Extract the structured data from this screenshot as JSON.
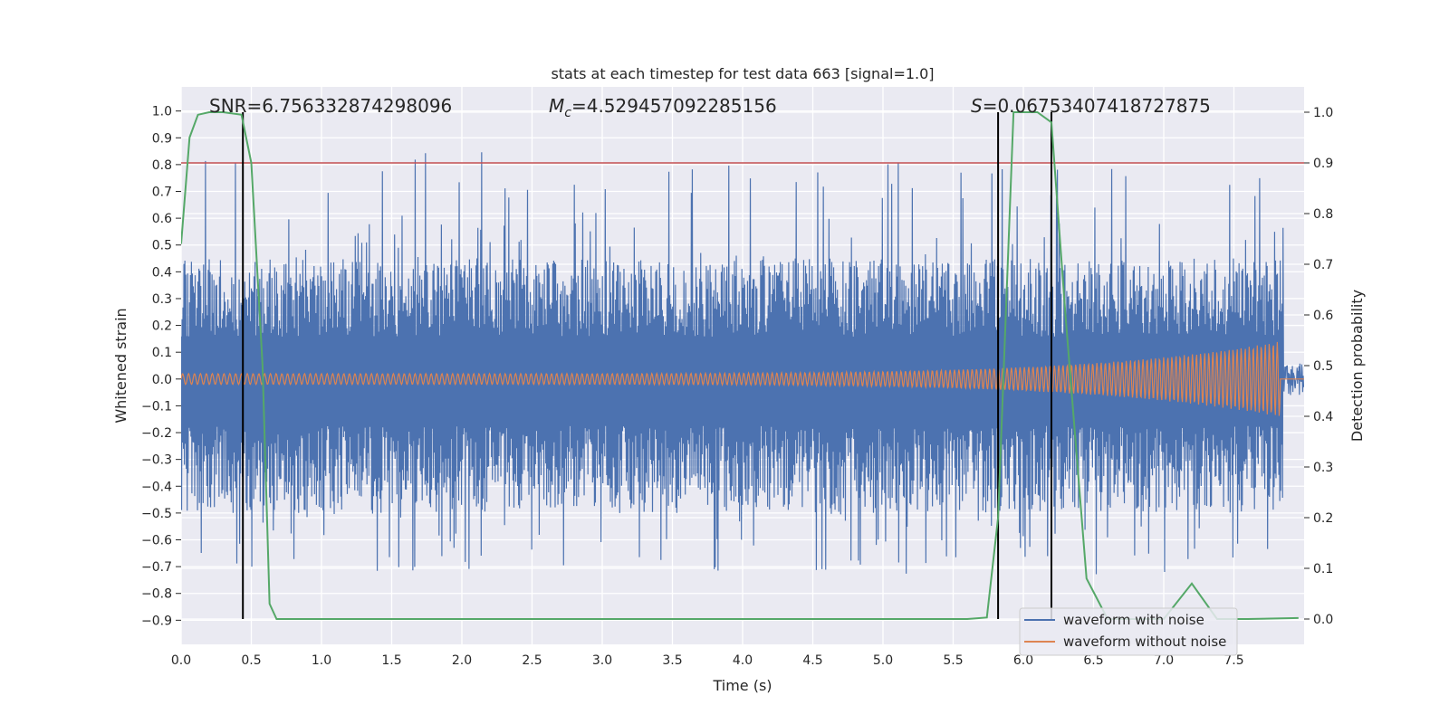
{
  "chart_data": {
    "type": "line",
    "title": "stats at each timestep for test data 663 [signal=1.0]",
    "xlabel": "Time (s)",
    "ylabel": "Whitened strain",
    "y2label": "Detection probability",
    "xlim": [
      0.0,
      8.0
    ],
    "ylim": [
      -0.99,
      1.09
    ],
    "y2lim": [
      -0.05,
      1.05
    ],
    "xticks": [
      "0.0",
      "0.5",
      "1.0",
      "1.5",
      "2.0",
      "2.5",
      "3.0",
      "3.5",
      "4.0",
      "4.5",
      "5.0",
      "5.5",
      "6.0",
      "6.5",
      "7.0",
      "7.5"
    ],
    "yticks": [
      "−0.9",
      "−0.8",
      "−0.7",
      "−0.6",
      "−0.5",
      "−0.4",
      "−0.3",
      "−0.2",
      "−0.1",
      "0.0",
      "0.1",
      "0.2",
      "0.3",
      "0.4",
      "0.5",
      "0.6",
      "0.7",
      "0.8",
      "0.9",
      "1.0"
    ],
    "y2ticks": [
      "0.0",
      "0.1",
      "0.2",
      "0.3",
      "0.4",
      "0.5",
      "0.6",
      "0.7",
      "0.8",
      "0.9",
      "1.0"
    ],
    "grid": true,
    "legend_placement": "lower-right",
    "annotations": {
      "snr": "SNR=6.756332874298096",
      "mc_label": "M",
      "mc_sub": "c",
      "mc_value": "=4.529457092285156",
      "s_label": "S",
      "s_value": "=0.06753407418727875"
    },
    "series": [
      {
        "name": "waveform with noise",
        "color": "#4c72b0",
        "envelope_upper": 0.45,
        "envelope_lower": -0.5,
        "peak_max": 0.98,
        "peak_min": -0.81
      },
      {
        "name": "waveform without noise",
        "color": "#dd8452",
        "amplitude_start": 0.02,
        "amplitude_end": 0.14,
        "cycles": 230,
        "merger_time": 7.83
      },
      {
        "name": "detection probability",
        "color": "#55a868",
        "x": [
          0.0,
          0.06,
          0.12,
          0.2,
          0.3,
          0.43,
          0.5,
          0.58,
          0.63,
          0.68,
          5.6,
          5.74,
          5.82,
          5.93,
          6.1,
          6.2,
          6.3,
          6.45,
          6.6,
          7.0,
          7.2,
          7.38,
          7.6,
          7.96
        ],
        "y": [
          0.74,
          0.95,
          0.995,
          1.0,
          1.0,
          0.995,
          0.9,
          0.5,
          0.03,
          0.0,
          0.0,
          0.003,
          0.2,
          1.0,
          1.0,
          0.98,
          0.6,
          0.08,
          0.0,
          0.0,
          0.07,
          0.0,
          0.0,
          0.002
        ]
      }
    ],
    "threshold": {
      "value": 0.9,
      "color": "#c44e52"
    },
    "detection_markers": [
      0.44,
      5.82,
      6.2
    ]
  }
}
